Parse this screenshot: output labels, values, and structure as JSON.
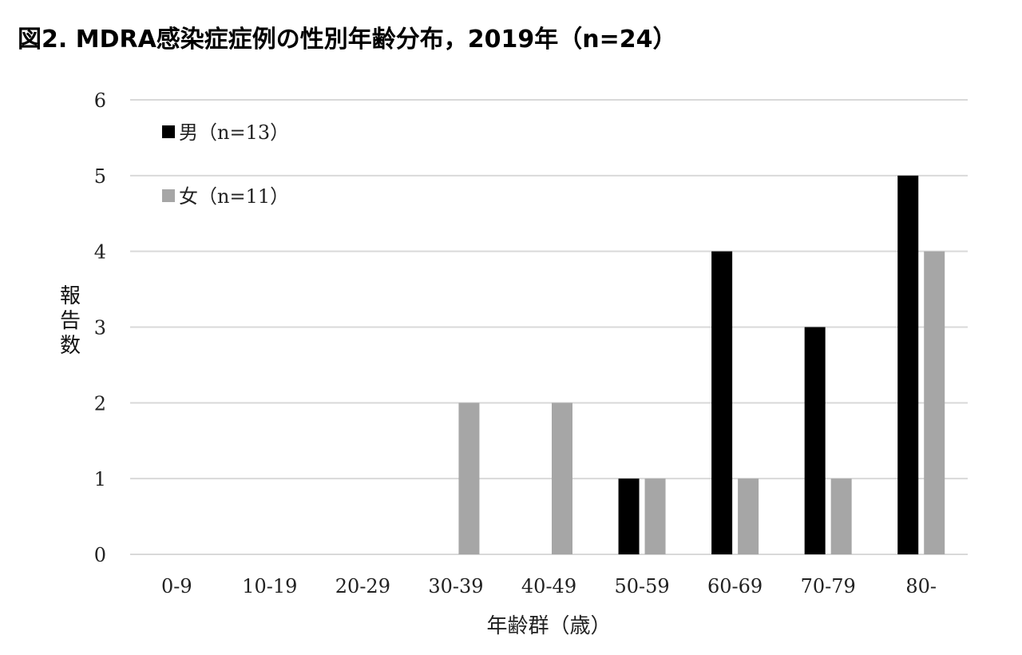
{
  "title": "図2. MDRA感染症症例の性別年齢分布，2019年（n=24）",
  "colors": {
    "male": "#000000",
    "female": "#a6a6a6",
    "grid": "#d9d9d9"
  },
  "chart_data": {
    "type": "bar",
    "title": "図2. MDRA感染症症例の性別年齢分布，2019年（n=24）",
    "xlabel": "年齢群（歳）",
    "ylabel": "報告数",
    "ylabel_chars": [
      "報",
      "告",
      "数"
    ],
    "categories": [
      "0-9",
      "10-19",
      "20-29",
      "30-39",
      "40-49",
      "50-59",
      "60-69",
      "70-79",
      "80-"
    ],
    "series": [
      {
        "name": "男（n=13）",
        "values": [
          0,
          0,
          0,
          0,
          0,
          1,
          4,
          3,
          5
        ]
      },
      {
        "name": "女（n=11）",
        "values": [
          0,
          0,
          0,
          2,
          2,
          1,
          1,
          1,
          4
        ]
      }
    ],
    "ylim": [
      0,
      6
    ],
    "yticks": [
      0,
      1,
      2,
      3,
      4,
      5,
      6
    ],
    "grid": true,
    "legend_position": "top-left"
  }
}
